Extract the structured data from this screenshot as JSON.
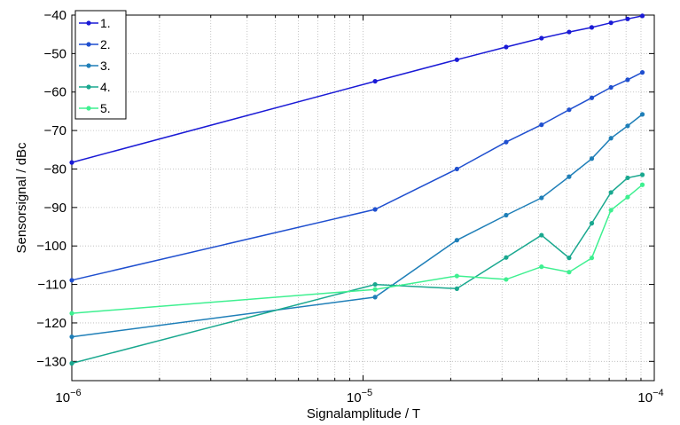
{
  "chart_data": {
    "type": "line",
    "title": "",
    "xlabel": "Signalamplitude / T",
    "ylabel": "Sensorsignal / dBc",
    "xscale": "log",
    "xlim": [
      1e-06,
      0.0001
    ],
    "ylim": [
      -135,
      -40
    ],
    "xtick_labels": [
      {
        "base": "10",
        "exp": "−6"
      },
      {
        "base": "10",
        "exp": "−5"
      },
      {
        "base": "10",
        "exp": "−4"
      }
    ],
    "yticks": [
      -130,
      -120,
      -110,
      -100,
      -90,
      -80,
      -70,
      -60,
      -50,
      -40
    ],
    "ytick_labels": [
      "−130",
      "−120",
      "−110",
      "−100",
      "−90",
      "−80",
      "−70",
      "−60",
      "−50",
      "−40"
    ],
    "grid": true,
    "legend_position": "top-left",
    "x": [
      1e-06,
      1.1e-05,
      2.1e-05,
      3.1e-05,
      4.1e-05,
      5.1e-05,
      6.1e-05,
      7.1e-05,
      8.1e-05,
      9.1e-05
    ],
    "series": [
      {
        "name": "1.",
        "color": "#1a1ad6",
        "values": [
          -78.3,
          -57.2,
          -51.6,
          -48.3,
          -46.0,
          -44.4,
          -43.2,
          -42.0,
          -41.0,
          -40.2
        ]
      },
      {
        "name": "2.",
        "color": "#1f4fcf",
        "values": [
          -108.9,
          -90.5,
          -80.0,
          -73.0,
          -68.5,
          -64.6,
          -61.5,
          -58.8,
          -56.8,
          -54.9
        ]
      },
      {
        "name": "3.",
        "color": "#1f7fb8",
        "values": [
          -123.6,
          -113.3,
          -98.5,
          -92.0,
          -87.5,
          -82.0,
          -77.3,
          -72.0,
          -68.8,
          -65.8
        ]
      },
      {
        "name": "4.",
        "color": "#1aa88f",
        "values": [
          -130.5,
          -110.0,
          -111.1,
          -103.0,
          -97.2,
          -103.1,
          -94.1,
          -86.1,
          -82.3,
          -81.5
        ]
      },
      {
        "name": "5.",
        "color": "#3ef090",
        "values": [
          -117.5,
          -111.3,
          -107.8,
          -108.7,
          -105.4,
          -106.8,
          -103.1,
          -90.7,
          -87.3,
          -84.1
        ]
      }
    ]
  }
}
